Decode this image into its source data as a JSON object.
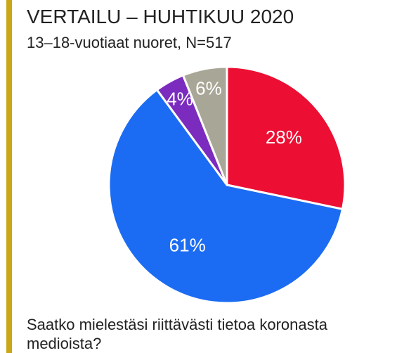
{
  "chart_data": {
    "type": "pie",
    "title": "VERTAILU – HUHTIKUU 2020",
    "subtitle": "13–18-vuotiaat nuoret, N=517",
    "caption": "Saatko mielestäsi riittävästi tietoa koronasta medioista?",
    "values": [
      28,
      61,
      4,
      6
    ],
    "value_labels": [
      "28%",
      "61%",
      "4%",
      "6%"
    ],
    "colors": [
      "#ec0f33",
      "#1b6cf2",
      "#7b2cbf",
      "#a8a797"
    ]
  }
}
